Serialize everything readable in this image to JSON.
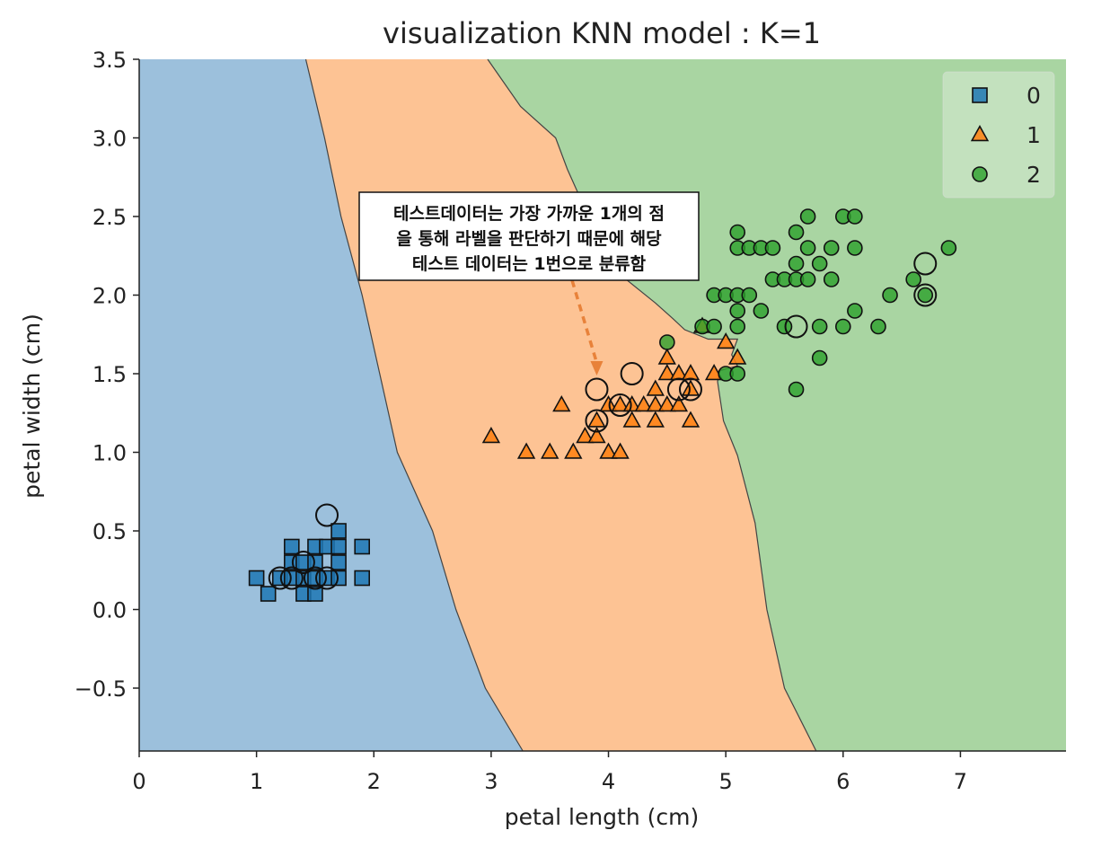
{
  "chart_data": {
    "type": "scatter",
    "title": "visualization KNN model : K=1",
    "xlabel": "petal length (cm)",
    "ylabel": "petal width (cm)",
    "xlim": [
      0,
      7.9
    ],
    "ylim": [
      -0.9,
      3.5
    ],
    "x_ticks": [
      0,
      1,
      2,
      3,
      4,
      5,
      6,
      7
    ],
    "x_tick_labels": [
      "0",
      "1",
      "2",
      "3",
      "4",
      "5",
      "6",
      "7"
    ],
    "y_ticks": [
      -0.5,
      0.0,
      0.5,
      1.0,
      1.5,
      2.0,
      2.5,
      3.0,
      3.5
    ],
    "y_tick_labels": [
      "−0.5",
      "0.0",
      "0.5",
      "1.0",
      "1.5",
      "2.0",
      "2.5",
      "3.0",
      "3.5"
    ],
    "grid": false,
    "legend_position": "top-right",
    "decision_regions": {
      "boundary_0_1": [
        [
          1.42,
          3.5
        ],
        [
          1.58,
          3.0
        ],
        [
          1.72,
          2.5
        ],
        [
          1.9,
          2.0
        ],
        [
          2.05,
          1.5
        ],
        [
          2.2,
          1.0
        ],
        [
          2.5,
          0.5
        ],
        [
          2.7,
          0.0
        ],
        [
          2.95,
          -0.5
        ],
        [
          3.27,
          -0.9
        ]
      ],
      "boundary_1_2": [
        [
          2.97,
          3.5
        ],
        [
          3.25,
          3.2
        ],
        [
          3.55,
          3.0
        ],
        [
          3.65,
          2.8
        ],
        [
          3.8,
          2.55
        ],
        [
          3.9,
          2.35
        ],
        [
          4.15,
          2.1
        ],
        [
          4.4,
          1.95
        ],
        [
          4.55,
          1.85
        ],
        [
          4.65,
          1.78
        ],
        [
          4.85,
          1.72
        ],
        [
          5.1,
          1.72
        ],
        [
          5.05,
          1.62
        ],
        [
          5.1,
          1.55
        ],
        [
          4.95,
          1.52
        ],
        [
          4.93,
          1.45
        ],
        [
          4.98,
          1.2
        ],
        [
          5.1,
          0.98
        ],
        [
          5.25,
          0.55
        ],
        [
          5.35,
          0.0
        ],
        [
          5.5,
          -0.5
        ],
        [
          5.77,
          -0.9
        ]
      ],
      "colors": [
        "#9cc0dc",
        "#fdc394",
        "#a9d5a2"
      ]
    },
    "series": [
      {
        "name": "0",
        "marker": "square",
        "color": "#1f77b4",
        "points": [
          [
            1.0,
            0.2
          ],
          [
            1.1,
            0.1
          ],
          [
            1.2,
            0.2
          ],
          [
            1.3,
            0.2
          ],
          [
            1.3,
            0.3
          ],
          [
            1.3,
            0.4
          ],
          [
            1.4,
            0.1
          ],
          [
            1.4,
            0.2
          ],
          [
            1.4,
            0.3
          ],
          [
            1.5,
            0.1
          ],
          [
            1.5,
            0.2
          ],
          [
            1.5,
            0.3
          ],
          [
            1.5,
            0.4
          ],
          [
            1.6,
            0.2
          ],
          [
            1.6,
            0.4
          ],
          [
            1.7,
            0.2
          ],
          [
            1.7,
            0.3
          ],
          [
            1.7,
            0.4
          ],
          [
            1.7,
            0.5
          ],
          [
            1.9,
            0.2
          ],
          [
            1.9,
            0.4
          ]
        ]
      },
      {
        "name": "1",
        "marker": "triangle",
        "color": "#ff7f0e",
        "points": [
          [
            3.0,
            1.1
          ],
          [
            3.3,
            1.0
          ],
          [
            3.5,
            1.0
          ],
          [
            3.6,
            1.3
          ],
          [
            3.7,
            1.0
          ],
          [
            3.8,
            1.1
          ],
          [
            3.9,
            1.1
          ],
          [
            3.9,
            1.2
          ],
          [
            4.0,
            1.0
          ],
          [
            4.0,
            1.3
          ],
          [
            4.1,
            1.0
          ],
          [
            4.1,
            1.3
          ],
          [
            4.2,
            1.2
          ],
          [
            4.2,
            1.3
          ],
          [
            4.3,
            1.3
          ],
          [
            4.4,
            1.2
          ],
          [
            4.4,
            1.3
          ],
          [
            4.4,
            1.4
          ],
          [
            4.5,
            1.3
          ],
          [
            4.5,
            1.5
          ],
          [
            4.5,
            1.6
          ],
          [
            4.6,
            1.3
          ],
          [
            4.6,
            1.5
          ],
          [
            4.7,
            1.2
          ],
          [
            4.7,
            1.4
          ],
          [
            4.7,
            1.5
          ],
          [
            4.8,
            1.8
          ],
          [
            4.9,
            1.5
          ],
          [
            5.0,
            1.7
          ],
          [
            5.1,
            1.6
          ]
        ]
      },
      {
        "name": "2",
        "marker": "circle",
        "color": "#2ca02c",
        "points": [
          [
            4.5,
            1.7
          ],
          [
            4.8,
            1.8
          ],
          [
            4.9,
            1.8
          ],
          [
            4.9,
            2.0
          ],
          [
            5.0,
            1.5
          ],
          [
            5.0,
            2.0
          ],
          [
            5.1,
            1.5
          ],
          [
            5.1,
            1.8
          ],
          [
            5.1,
            1.9
          ],
          [
            5.1,
            2.0
          ],
          [
            5.1,
            2.3
          ],
          [
            5.1,
            2.4
          ],
          [
            5.2,
            2.0
          ],
          [
            5.2,
            2.3
          ],
          [
            5.3,
            1.9
          ],
          [
            5.3,
            2.3
          ],
          [
            5.4,
            2.1
          ],
          [
            5.4,
            2.3
          ],
          [
            5.5,
            1.8
          ],
          [
            5.5,
            2.1
          ],
          [
            5.6,
            1.4
          ],
          [
            5.6,
            2.1
          ],
          [
            5.6,
            2.2
          ],
          [
            5.6,
            2.4
          ],
          [
            5.7,
            2.1
          ],
          [
            5.7,
            2.3
          ],
          [
            5.7,
            2.5
          ],
          [
            5.8,
            1.6
          ],
          [
            5.8,
            1.8
          ],
          [
            5.8,
            2.2
          ],
          [
            5.9,
            2.1
          ],
          [
            5.9,
            2.3
          ],
          [
            6.0,
            1.8
          ],
          [
            6.0,
            2.5
          ],
          [
            6.1,
            1.9
          ],
          [
            6.1,
            2.3
          ],
          [
            6.1,
            2.5
          ],
          [
            6.3,
            1.8
          ],
          [
            6.4,
            2.0
          ],
          [
            6.6,
            2.1
          ],
          [
            6.7,
            2.0
          ],
          [
            6.9,
            2.3
          ]
        ]
      }
    ],
    "test_points": [
      [
        1.2,
        0.2
      ],
      [
        1.3,
        0.2
      ],
      [
        1.4,
        0.3
      ],
      [
        1.5,
        0.2
      ],
      [
        1.6,
        0.2
      ],
      [
        1.6,
        0.6
      ],
      [
        3.9,
        1.2
      ],
      [
        3.9,
        1.4
      ],
      [
        4.1,
        1.3
      ],
      [
        4.2,
        1.5
      ],
      [
        4.6,
        1.4
      ],
      [
        4.7,
        1.4
      ],
      [
        5.6,
        1.8
      ],
      [
        6.7,
        2.0
      ],
      [
        6.7,
        2.2
      ]
    ],
    "annotation": {
      "lines": [
        "테스트데이터는 가장 가까운 1개의 점",
        "을 통해 라벨을 판단하기 때문에 해당",
        "테스트 데이터는 1번으로 분류함"
      ],
      "arrow_target": [
        3.9,
        1.5
      ],
      "arrow_color": "#e8823a"
    }
  }
}
